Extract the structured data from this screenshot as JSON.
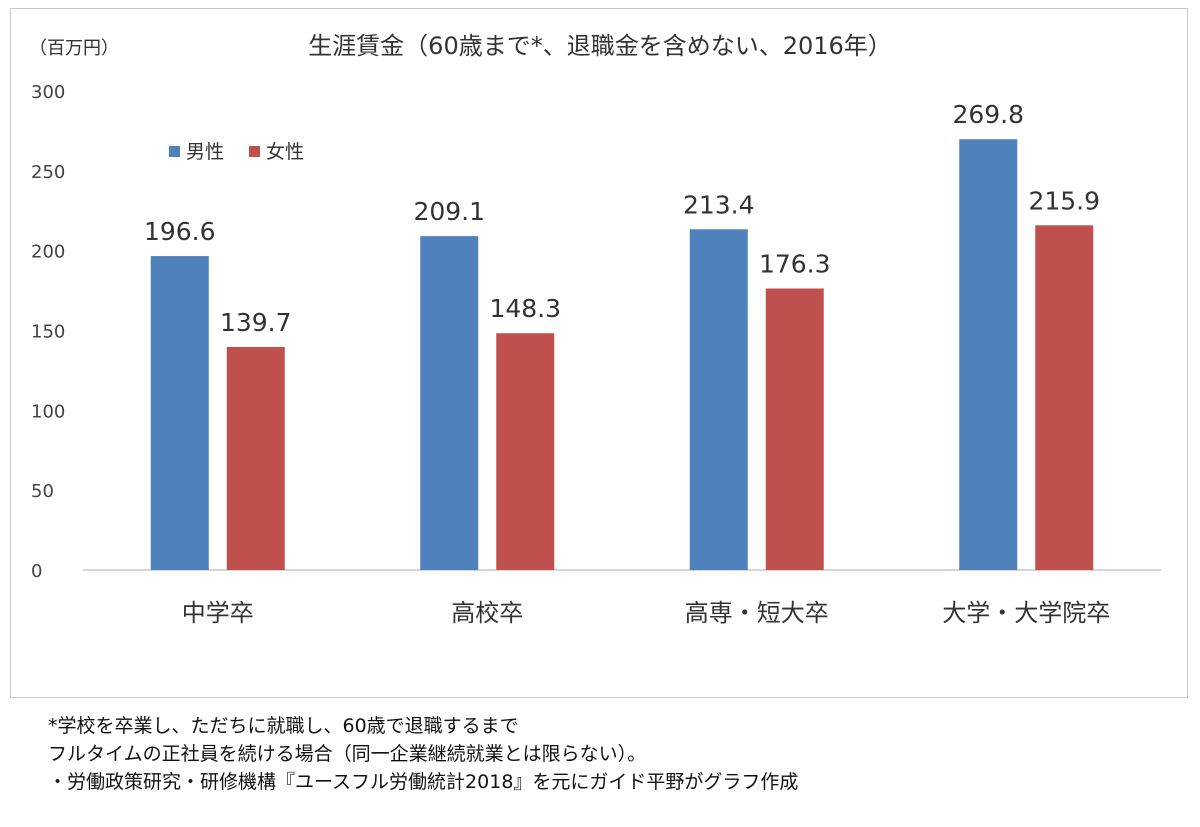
{
  "chart_data": {
    "type": "bar",
    "title": "生涯賃金（60歳まで*、退職金を含めない、2016年）",
    "unit_label": "（百万円）",
    "xlabel": "",
    "ylabel": "",
    "categories": [
      "中学卒",
      "高校卒",
      "高専・短大卒",
      "大学・大学院卒"
    ],
    "series": [
      {
        "name": "男性",
        "color": "#4f81bd",
        "values": [
          196.6,
          209.1,
          213.4,
          269.8
        ]
      },
      {
        "name": "女性",
        "color": "#c0504d",
        "values": [
          139.7,
          148.3,
          176.3,
          215.9
        ]
      }
    ],
    "ylim": [
      0,
      300
    ],
    "yticks": [
      0,
      50,
      100,
      150,
      200,
      250,
      300
    ],
    "grid": false,
    "legend_position": "top-left",
    "data_labels": true
  },
  "notes": [
    "*学校を卒業し、ただちに就職し、60歳で退職するまで",
    "フルタイムの正社員を続ける場合（同一企業継続就業とは限らない）。",
    "・労働政策研究・研修機構『ユースフル労働統計2018』を元にガイド平野がグラフ作成"
  ]
}
